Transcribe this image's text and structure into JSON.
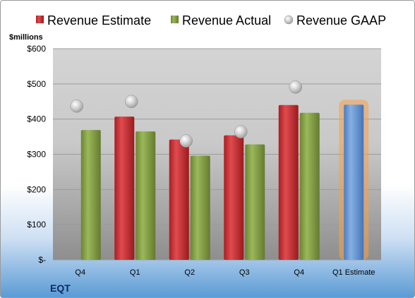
{
  "chart_data": {
    "type": "bar",
    "ylabel": "$millions",
    "ylim": [
      0,
      600
    ],
    "yticks": [
      0,
      100,
      200,
      300,
      400,
      500,
      600
    ],
    "ytick_labels": [
      "$-",
      "$100",
      "$200",
      "$300",
      "$400",
      "$500",
      "$600"
    ],
    "categories": [
      "Q4",
      "Q1",
      "Q2",
      "Q3",
      "Q4",
      "Q1 Estimate"
    ],
    "series": [
      {
        "name": "Revenue Estimate",
        "type": "bar",
        "values": [
          null,
          407,
          342,
          354,
          440,
          null
        ]
      },
      {
        "name": "Revenue Actual",
        "type": "bar",
        "values": [
          369,
          365,
          296,
          328,
          418,
          null
        ]
      },
      {
        "name": "Revenue GAAP",
        "type": "scatter",
        "values": [
          437,
          450,
          338,
          364,
          491,
          null
        ]
      },
      {
        "name": "",
        "type": "bar",
        "values": [
          null,
          null,
          null,
          null,
          null,
          441
        ]
      }
    ],
    "legend_position": "top",
    "grid": true,
    "ticker": "EQT"
  },
  "colors": {
    "estimate": "#c0262b",
    "actual": "#7f9a3e",
    "gaap": "#b9b9b9",
    "future": "#5b8fd0",
    "highlight": "#f5a04a",
    "ticker": "#0b2a66"
  }
}
